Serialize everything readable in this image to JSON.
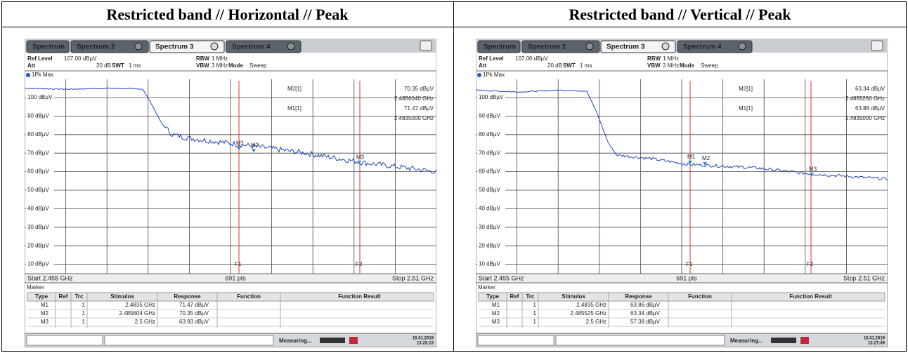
{
  "table": {
    "headers": [
      "Restricted band // Horizontal // Peak",
      "Restricted band // Vertical // Peak"
    ]
  },
  "panels": [
    {
      "tabs": [
        "Spectrum",
        "Spectrum 2",
        "Spectrum 3",
        "Spectrum 4"
      ],
      "ref_level": "Ref Level",
      "ref_value": "107.00 dBµV",
      "att": "Att",
      "att_value": "20 dB",
      "swt": "SWT",
      "swt_value": "1 ms",
      "rbw": "RBW",
      "rbw_value": "1 MHz",
      "vbw": "VBW",
      "vbw_value": "3 MHz",
      "mode": "Mode",
      "mode_value": "Sweep",
      "trace_label": "1Pk Max",
      "y_labels": [
        "100 dBµV",
        "90 dBµV",
        "80 dBµV",
        "70 dBµV",
        "60 dBµV",
        "50 dBµV",
        "40 dBµV",
        "30 dBµV",
        "20 dBµV",
        "10 dBµV"
      ],
      "marker_info": [
        {
          "name": "M2[1]",
          "level": "70.35 dBµV",
          "freq": "2.4856040 GHz"
        },
        {
          "name": "M1[1]",
          "level": "71.47 dBµV",
          "freq": "2.4835000 GHz"
        }
      ],
      "plot_markers": [
        "M1",
        "M2",
        "M3"
      ],
      "lines": [
        "F1",
        "F2"
      ],
      "start": "Start 2.455 GHz",
      "points": "691 pts",
      "stop": "Stop 2.51 GHz",
      "marker_table": {
        "title": "Marker",
        "columns": [
          "Type",
          "Ref",
          "Trc",
          "Stimulus",
          "Response",
          "Function",
          "Function Result"
        ],
        "rows": [
          {
            "type": "M1",
            "trc": "1",
            "stimulus": "2.4835 GHz",
            "response": "71.47 dBµV"
          },
          {
            "type": "M2",
            "trc": "1",
            "stimulus": "2.485604 GHz",
            "response": "70.35 dBµV"
          },
          {
            "type": "M3",
            "trc": "1",
            "stimulus": "2.5 GHz",
            "response": "63.93 dBµV"
          }
        ]
      },
      "status": "Measuring...",
      "date": "16.01.2019",
      "time": "13:25:13"
    },
    {
      "tabs": [
        "Spectrum",
        "Spectrum 2",
        "Spectrum 3",
        "Spectrum 4"
      ],
      "ref_level": "Ref Level",
      "ref_value": "107.00 dBµV",
      "att": "Att",
      "att_value": "20 dB",
      "swt": "SWT",
      "swt_value": "1 ms",
      "rbw": "RBW",
      "rbw_value": "1 MHz",
      "vbw": "VBW",
      "vbw_value": "3 MHz",
      "mode": "Mode",
      "mode_value": "Sweep",
      "trace_label": "1Pk Max",
      "y_labels": [
        "100 dBµV",
        "90 dBµV",
        "80 dBµV",
        "70 dBµV",
        "60 dBµV",
        "50 dBµV",
        "40 dBµV",
        "30 dBµV",
        "20 dBµV",
        "10 dBµV"
      ],
      "marker_info": [
        {
          "name": "M2[1]",
          "level": "63.34 dBµV",
          "freq": "2.4855250 GHz"
        },
        {
          "name": "M1[1]",
          "level": "63.86 dBµV",
          "freq": "2.4835000 GHz"
        }
      ],
      "plot_markers": [
        "M1",
        "M2",
        "M3"
      ],
      "lines": [
        "F1",
        "F2"
      ],
      "start": "Start 2.455 GHz",
      "points": "691 pts",
      "stop": "Stop 2.51 GHz",
      "marker_table": {
        "title": "Marker",
        "columns": [
          "Type",
          "Ref",
          "Trc",
          "Stimulus",
          "Response",
          "Function",
          "Function Result"
        ],
        "rows": [
          {
            "type": "M1",
            "trc": "1",
            "stimulus": "2.4835 GHz",
            "response": "63.86 dBµV"
          },
          {
            "type": "M2",
            "trc": "1",
            "stimulus": "2.485525 GHz",
            "response": "63.34 dBµV"
          },
          {
            "type": "M3",
            "trc": "1",
            "stimulus": "2.5 GHz",
            "response": "57.38 dBµV"
          }
        ]
      },
      "status": "Measuring...",
      "date": "16.01.2019",
      "time": "13:27:09"
    }
  ]
}
